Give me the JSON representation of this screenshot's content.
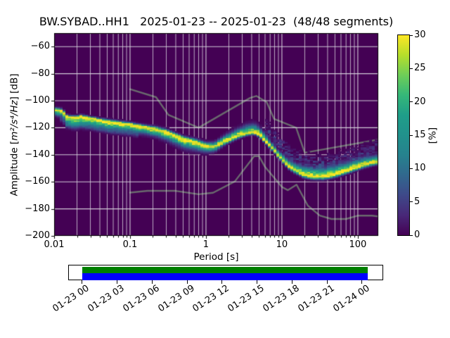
{
  "title": "BW.SYBAD..HH1   2025-01-23 -- 2025-01-23  (48/48 segments)",
  "station": {
    "network": "BW",
    "station": "SYBAD",
    "channel": "HH1",
    "date_range": "2025-01-23 -- 2025-01-23",
    "segments": "48/48 segments"
  },
  "colors": {
    "figure_bg": "#ffffff",
    "plot_bg": "#440154",
    "gridline": "#d9d5de",
    "noise_model_line": "#6a6a6e",
    "spine": "#000000",
    "tick_text": "#000000",
    "timeline_green": "#008000",
    "timeline_blue": "#0000ff"
  },
  "chart_data": {
    "type": "heatmap",
    "subtype": "ppsd-probabilistic-power-spectral-density",
    "title": "BW.SYBAD..HH1   2025-01-23 -- 2025-01-23  (48/48 segments)",
    "xlabel": "Period [s]",
    "ylabel": "Amplitude [m²/s⁴/Hz] [dB]",
    "ylabel_parts": {
      "prefix": "Amplitude [",
      "math": "m²/s⁴/Hz",
      "suffix": "] [dB]"
    },
    "x_scale": "log",
    "xlim": [
      0.01,
      186
    ],
    "ylim": [
      -200,
      -50
    ],
    "grid": true,
    "x_ticks": [
      [
        0.01,
        "0.01"
      ],
      [
        0.1,
        "0.1"
      ],
      [
        1,
        "1"
      ],
      [
        10,
        "10"
      ],
      [
        100,
        "100"
      ]
    ],
    "y_ticks": [
      [
        -60,
        "−60"
      ],
      [
        -80,
        "−80"
      ],
      [
        -100,
        "−100"
      ],
      [
        -120,
        "−120"
      ],
      [
        -140,
        "−140"
      ],
      [
        -160,
        "−160"
      ],
      [
        -180,
        "−180"
      ],
      [
        -200,
        "−200"
      ]
    ],
    "y_grid_values": [
      -60,
      -80,
      -100,
      -120,
      -140,
      -160,
      -180
    ],
    "colorbar": {
      "label": "[%]",
      "min": 0,
      "max": 30,
      "ticks": [
        [
          0,
          "0"
        ],
        [
          5,
          "5"
        ],
        [
          10,
          "10"
        ],
        [
          15,
          "15"
        ],
        [
          20,
          "20"
        ],
        [
          25,
          "25"
        ],
        [
          30,
          "30"
        ]
      ],
      "colormap": "viridis",
      "stops": [
        [
          0.0,
          "#440154"
        ],
        [
          0.1,
          "#482878"
        ],
        [
          0.2,
          "#3e4989"
        ],
        [
          0.3,
          "#31688e"
        ],
        [
          0.4,
          "#26828e"
        ],
        [
          0.5,
          "#21918c"
        ],
        [
          0.6,
          "#1f9e89"
        ],
        [
          0.7,
          "#35b779"
        ],
        [
          0.8,
          "#6ece58"
        ],
        [
          0.9,
          "#b5de2b"
        ],
        [
          1.0,
          "#fde725"
        ]
      ]
    },
    "ppsd_mode_ridge": {
      "name": "PPSD probability ridge",
      "comment": "points are [period_s, dB, spread_up_dB, spread_down_dB]; dB of max-probability (~30%) ridge",
      "points": [
        [
          0.01,
          -106.5,
          2.5,
          5
        ],
        [
          0.013,
          -107.5,
          2.5,
          6
        ],
        [
          0.0145,
          -111.5,
          2,
          8
        ],
        [
          0.018,
          -112.5,
          2,
          9
        ],
        [
          0.023,
          -111.5,
          2,
          9
        ],
        [
          0.032,
          -113.2,
          2,
          8
        ],
        [
          0.05,
          -115.3,
          2.5,
          8
        ],
        [
          0.08,
          -116.8,
          2.5,
          7
        ],
        [
          0.1,
          -117.5,
          2.5,
          7
        ],
        [
          0.15,
          -119.2,
          2.5,
          7
        ],
        [
          0.22,
          -121.0,
          3,
          7
        ],
        [
          0.3,
          -122.8,
          3,
          8
        ],
        [
          0.5,
          -128.0,
          3,
          9
        ],
        [
          0.76,
          -130.7,
          3.5,
          8
        ],
        [
          1.0,
          -133.5,
          4,
          6
        ],
        [
          1.3,
          -133.8,
          4.5,
          5
        ],
        [
          1.8,
          -129.7,
          6,
          3.5
        ],
        [
          2.7,
          -125.5,
          7,
          3
        ],
        [
          3.5,
          -123.8,
          8,
          2.5
        ],
        [
          4.3,
          -123.0,
          8,
          2.5
        ],
        [
          5.0,
          -125.0,
          8,
          2.5
        ],
        [
          5.8,
          -128.6,
          7,
          2.5
        ],
        [
          7.1,
          -133.9,
          5,
          2.5
        ],
        [
          7.9,
          -136.5,
          5,
          2.5
        ],
        [
          8.8,
          -140.1,
          5,
          2.5
        ],
        [
          9.8,
          -142.7,
          5.5,
          2.5
        ],
        [
          12.0,
          -147.9,
          6,
          3
        ],
        [
          15.0,
          -151.4,
          7,
          3
        ],
        [
          19.0,
          -154.5,
          8,
          3
        ],
        [
          25.0,
          -156.0,
          9,
          3
        ],
        [
          35.0,
          -156.2,
          9,
          3
        ],
        [
          50.0,
          -154.5,
          9,
          3
        ],
        [
          70.0,
          -152.0,
          9,
          3
        ],
        [
          100.0,
          -149.0,
          8,
          3
        ],
        [
          130.0,
          -146.8,
          7,
          3
        ],
        [
          186.0,
          -144.8,
          6,
          3
        ]
      ]
    },
    "secondary_features": {
      "low_period_second_mode": {
        "period_range": [
          0.012,
          0.13
        ],
        "offset_dB": -6.5,
        "amplitude": 0.16
      },
      "long_period_wisps": {
        "period_range": [
          6,
          186
        ],
        "offset_dB": 10,
        "amplitude": 0.14
      }
    },
    "noise_models": {
      "nhnm": {
        "name": "Peterson NHNM",
        "points": [
          [
            0.1,
            -91.5
          ],
          [
            0.22,
            -97.4
          ],
          [
            0.32,
            -110.5
          ],
          [
            0.8,
            -120.0
          ],
          [
            3.8,
            -98.0
          ],
          [
            4.6,
            -96.5
          ],
          [
            6.3,
            -101.0
          ],
          [
            7.9,
            -113.5
          ],
          [
            15.4,
            -120.0
          ],
          [
            20.0,
            -138.5
          ],
          [
            186.0,
            -128.8
          ]
        ]
      },
      "nlnm": {
        "name": "Peterson NLNM",
        "points": [
          [
            0.1,
            -168.0
          ],
          [
            0.17,
            -166.7
          ],
          [
            0.4,
            -166.7
          ],
          [
            0.8,
            -169.2
          ],
          [
            1.24,
            -168.1
          ],
          [
            2.4,
            -159.7
          ],
          [
            4.3,
            -141.1
          ],
          [
            5.0,
            -141.1
          ],
          [
            6.0,
            -149.0
          ],
          [
            10.0,
            -163.8
          ],
          [
            12.0,
            -166.2
          ],
          [
            15.6,
            -162.1
          ],
          [
            21.9,
            -177.5
          ],
          [
            31.6,
            -185.0
          ],
          [
            45.0,
            -187.5
          ],
          [
            70.0,
            -187.5
          ],
          [
            101.0,
            -185.0
          ],
          [
            154.0,
            -185.0
          ],
          [
            186.0,
            -185.6
          ]
        ]
      }
    }
  },
  "timeline": {
    "tick_labels": [
      "01-23 00",
      "01-23 03",
      "01-23 06",
      "01-23 09",
      "01-23 12",
      "01-23 15",
      "01-23 18",
      "01-23 21",
      "01-24 00"
    ],
    "coverage_start": "01-23 00",
    "coverage_end": "01-24 00",
    "bar_colors": {
      "green": "#008000",
      "blue": "#0000ff"
    }
  }
}
